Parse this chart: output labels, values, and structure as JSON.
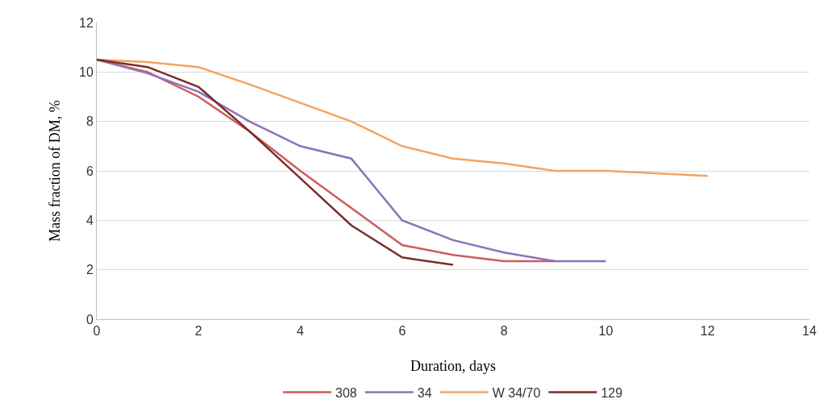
{
  "chart_data": {
    "type": "line",
    "xlabel": "Duration, days",
    "ylabel": "Mass fraction of DM, %",
    "xlim": [
      0,
      14
    ],
    "xticks": [
      0,
      2,
      4,
      6,
      8,
      10,
      12,
      14
    ],
    "ylim": [
      0,
      12
    ],
    "yticks": [
      0,
      2,
      4,
      6,
      8,
      10,
      12
    ],
    "grid": "y",
    "legend": "bottom",
    "marker": "none",
    "line_style": "solid",
    "series": [
      {
        "name": "308",
        "color": "#cd5c5c",
        "x": [
          0,
          1,
          2,
          3,
          4,
          5,
          6,
          7,
          8,
          9
        ],
        "values": [
          10.5,
          10.0,
          9.0,
          7.6,
          6.0,
          4.5,
          3.0,
          2.6,
          2.35,
          2.35
        ]
      },
      {
        "name": "34",
        "color": "#8c72b8",
        "x": [
          0,
          1,
          2,
          3,
          4,
          5,
          6,
          7,
          8,
          9,
          10
        ],
        "values": [
          10.5,
          9.95,
          9.2,
          8.0,
          7.0,
          6.5,
          4.0,
          3.2,
          2.7,
          2.35,
          2.35
        ]
      },
      {
        "name": "W 34/70",
        "color": "#f4a460",
        "x": [
          0,
          1,
          2,
          3,
          4,
          5,
          6,
          7,
          8,
          9,
          10,
          11,
          12
        ],
        "values": [
          10.5,
          10.4,
          10.2,
          9.5,
          8.75,
          8.0,
          7.0,
          6.5,
          6.3,
          6.0,
          6.0,
          5.9,
          5.8
        ]
      },
      {
        "name": "129",
        "color": "#7b2c2c",
        "x": [
          0,
          1,
          2,
          3,
          4,
          5,
          6,
          7
        ],
        "values": [
          10.5,
          10.2,
          9.4,
          7.6,
          5.7,
          3.8,
          2.5,
          2.2
        ]
      }
    ]
  }
}
